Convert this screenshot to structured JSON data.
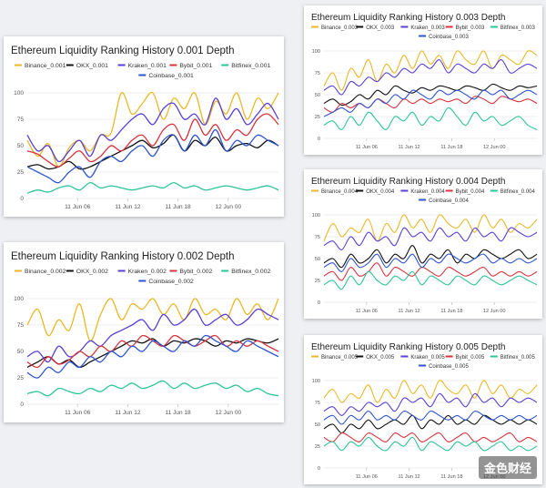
{
  "colors": {
    "Binance": "#e9b92a",
    "OKX": "#111111",
    "Kraken": "#5b3fd6",
    "Bybit": "#d8343c",
    "Bitfinex": "#2ec49a",
    "Coinbase": "#2f55d1"
  },
  "watermark": "金色财经",
  "chart_data": [
    {
      "type": "line",
      "title": "Ethereum Liquidity Ranking History 0.001 Depth",
      "ylim": [
        0,
        100
      ],
      "yticks": [
        0,
        25,
        50,
        75,
        100
      ],
      "xticks": [
        "11 Jun 06",
        "11 Jun 12",
        "11 Jun 18",
        "12 Jun 00"
      ],
      "legend_position": "top",
      "grid": true,
      "series": [
        {
          "name": "Binance_0.001",
          "values": [
            55,
            40,
            52,
            30,
            48,
            55,
            45,
            60,
            62,
            100,
            80,
            90,
            100,
            75,
            95,
            85,
            100,
            70,
            92,
            80,
            100,
            75,
            95,
            85,
            100
          ]
        },
        {
          "name": "OKX_0.001",
          "values": [
            30,
            32,
            28,
            30,
            35,
            28,
            30,
            35,
            40,
            45,
            50,
            55,
            48,
            52,
            60,
            45,
            55,
            50,
            58,
            45,
            50,
            52,
            48,
            55,
            50
          ]
        },
        {
          "name": "Kraken_0.001",
          "values": [
            60,
            45,
            50,
            35,
            45,
            55,
            40,
            60,
            55,
            65,
            75,
            80,
            70,
            85,
            90,
            75,
            80,
            70,
            95,
            75,
            85,
            70,
            80,
            90,
            75
          ]
        },
        {
          "name": "Bybit_0.001",
          "values": [
            45,
            42,
            35,
            30,
            38,
            45,
            35,
            40,
            50,
            45,
            55,
            60,
            50,
            65,
            70,
            55,
            75,
            60,
            70,
            55,
            65,
            60,
            75,
            80,
            70
          ]
        },
        {
          "name": "Bitfinex_0.001",
          "values": [
            5,
            8,
            6,
            10,
            12,
            8,
            15,
            10,
            12,
            10,
            8,
            10,
            12,
            10,
            15,
            10,
            12,
            8,
            10,
            12,
            10,
            8,
            10,
            12,
            8
          ]
        },
        {
          "name": "Coinbase_0.001",
          "values": [
            30,
            25,
            20,
            15,
            25,
            30,
            20,
            35,
            40,
            35,
            45,
            50,
            40,
            55,
            60,
            45,
            60,
            50,
            65,
            45,
            55,
            50,
            60,
            55,
            50
          ]
        }
      ]
    },
    {
      "type": "line",
      "title": "Ethereum Liquidity Ranking History 0.002 Depth",
      "ylim": [
        0,
        100
      ],
      "yticks": [
        0,
        25,
        50,
        75,
        100
      ],
      "xticks": [
        "11 Jun 06",
        "11 Jun 12",
        "11 Jun 18",
        "12 Jun 00"
      ],
      "legend_position": "top",
      "grid": true,
      "series": [
        {
          "name": "Binance_0.002",
          "values": [
            75,
            90,
            65,
            80,
            70,
            95,
            60,
            85,
            100,
            80,
            95,
            90,
            100,
            85,
            95,
            80,
            100,
            85,
            90,
            80,
            100,
            85,
            95,
            80,
            100
          ]
        },
        {
          "name": "OKX_0.002",
          "values": [
            35,
            40,
            45,
            38,
            42,
            35,
            40,
            45,
            50,
            55,
            60,
            58,
            62,
            55,
            60,
            58,
            62,
            60,
            55,
            60,
            58,
            62,
            60,
            58,
            62
          ]
        },
        {
          "name": "Kraken_0.002",
          "values": [
            45,
            50,
            40,
            55,
            45,
            50,
            60,
            55,
            65,
            70,
            75,
            80,
            70,
            85,
            75,
            80,
            90,
            75,
            80,
            85,
            75,
            80,
            90,
            85,
            80
          ]
        },
        {
          "name": "Bybit_0.002",
          "values": [
            40,
            35,
            45,
            38,
            42,
            50,
            45,
            55,
            50,
            60,
            55,
            65,
            60,
            55,
            65,
            60,
            55,
            60,
            65,
            55,
            60,
            55,
            60,
            55,
            50
          ]
        },
        {
          "name": "Bitfinex_0.002",
          "values": [
            10,
            12,
            8,
            15,
            12,
            10,
            15,
            12,
            18,
            15,
            20,
            15,
            18,
            22,
            15,
            20,
            15,
            18,
            20,
            15,
            18,
            12,
            15,
            10,
            8
          ]
        },
        {
          "name": "Coinbase_0.002",
          "values": [
            30,
            25,
            35,
            30,
            40,
            35,
            45,
            40,
            50,
            45,
            55,
            50,
            60,
            55,
            50,
            60,
            55,
            65,
            60,
            55,
            50,
            60,
            55,
            50,
            45
          ]
        }
      ]
    },
    {
      "type": "line",
      "title": "Ethereum Liquidity Ranking History 0.003 Depth",
      "ylim": [
        0,
        100
      ],
      "yticks": [
        0,
        25,
        50,
        75,
        100
      ],
      "xticks": [
        "11 Jun 06",
        "11 Jun 12",
        "11 Jun 18",
        "12 Jun 00"
      ],
      "legend_position": "top",
      "grid": true,
      "series": [
        {
          "name": "Binance_0.003",
          "values": [
            60,
            75,
            55,
            80,
            70,
            90,
            65,
            85,
            75,
            95,
            80,
            100,
            85,
            95,
            80,
            100,
            90,
            85,
            100,
            80,
            95,
            90,
            85,
            100,
            95
          ]
        },
        {
          "name": "OKX_0.003",
          "values": [
            40,
            45,
            38,
            42,
            50,
            45,
            55,
            50,
            60,
            55,
            52,
            58,
            55,
            60,
            58,
            55,
            60,
            58,
            55,
            62,
            58,
            55,
            60,
            58,
            60
          ]
        },
        {
          "name": "Kraken_0.003",
          "values": [
            55,
            60,
            50,
            65,
            60,
            70,
            65,
            75,
            70,
            80,
            75,
            85,
            80,
            90,
            75,
            85,
            80,
            75,
            85,
            80,
            90,
            75,
            80,
            85,
            80
          ]
        },
        {
          "name": "Bybit_0.003",
          "values": [
            35,
            30,
            40,
            35,
            40,
            35,
            45,
            40,
            35,
            45,
            40,
            45,
            40,
            45,
            42,
            45,
            40,
            48,
            45,
            40,
            48,
            45,
            42,
            45,
            40
          ]
        },
        {
          "name": "Bitfinex_0.003",
          "values": [
            15,
            20,
            10,
            25,
            15,
            30,
            20,
            10,
            25,
            20,
            30,
            15,
            25,
            20,
            35,
            25,
            15,
            30,
            20,
            25,
            15,
            20,
            25,
            15,
            10
          ]
        },
        {
          "name": "Coinbase_0.003",
          "values": [
            25,
            30,
            35,
            30,
            40,
            35,
            45,
            40,
            50,
            45,
            55,
            50,
            45,
            55,
            50,
            55,
            50,
            45,
            55,
            50,
            55,
            45,
            50,
            55,
            50
          ]
        }
      ]
    },
    {
      "type": "line",
      "title": "Ethereum Liquidity Ranking History 0.004 Depth",
      "ylim": [
        0,
        100
      ],
      "yticks": [
        0,
        25,
        50,
        75,
        100
      ],
      "xticks": [
        "11 Jun 06",
        "11 Jun 12",
        "11 Jun 18",
        "12 Jun 00"
      ],
      "legend_position": "top",
      "grid": true,
      "series": [
        {
          "name": "Binance_0.004",
          "values": [
            70,
            90,
            75,
            85,
            80,
            95,
            70,
            90,
            80,
            100,
            85,
            95,
            80,
            100,
            90,
            85,
            95,
            80,
            100,
            85,
            95,
            80,
            90,
            85,
            95
          ]
        },
        {
          "name": "OKX_0.004",
          "values": [
            45,
            50,
            40,
            55,
            45,
            50,
            60,
            45,
            55,
            50,
            65,
            45,
            55,
            50,
            60,
            45,
            55,
            50,
            60,
            55,
            50,
            55,
            60,
            50,
            55
          ]
        },
        {
          "name": "Kraken_0.004",
          "values": [
            65,
            70,
            60,
            75,
            65,
            80,
            70,
            75,
            65,
            85,
            75,
            80,
            70,
            85,
            75,
            80,
            70,
            85,
            75,
            80,
            70,
            85,
            80,
            75,
            80
          ]
        },
        {
          "name": "Bybit_0.004",
          "values": [
            30,
            35,
            25,
            40,
            30,
            35,
            45,
            30,
            40,
            35,
            30,
            40,
            35,
            30,
            40,
            35,
            30,
            35,
            40,
            30,
            35,
            30,
            35,
            30,
            35
          ]
        },
        {
          "name": "Bitfinex_0.004",
          "values": [
            20,
            25,
            15,
            30,
            20,
            35,
            25,
            20,
            30,
            25,
            35,
            20,
            30,
            25,
            20,
            30,
            25,
            20,
            30,
            25,
            20,
            25,
            30,
            25,
            20
          ]
        },
        {
          "name": "Coinbase_0.004",
          "values": [
            40,
            45,
            35,
            50,
            40,
            45,
            55,
            40,
            50,
            45,
            55,
            40,
            50,
            45,
            55,
            50,
            45,
            50,
            55,
            45,
            50,
            45,
            50,
            45,
            50
          ]
        }
      ]
    },
    {
      "type": "line",
      "title": "Ethereum Liquidity Ranking History 0.005 Depth",
      "ylim": [
        0,
        100
      ],
      "yticks": [
        0,
        25,
        50,
        75,
        100
      ],
      "xticks": [
        "11 Jun 06",
        "11 Jun 12",
        "11 Jun 18",
        "12 Jun 00"
      ],
      "legend_position": "top",
      "grid": true,
      "series": [
        {
          "name": "Binance_0.005",
          "values": [
            80,
            90,
            75,
            85,
            80,
            95,
            75,
            90,
            80,
            100,
            85,
            95,
            80,
            100,
            90,
            85,
            95,
            80,
            100,
            85,
            95,
            80,
            90,
            85,
            95
          ]
        },
        {
          "name": "OKX_0.005",
          "values": [
            45,
            50,
            40,
            50,
            45,
            55,
            45,
            50,
            55,
            50,
            60,
            45,
            55,
            50,
            60,
            50,
            55,
            50,
            60,
            55,
            50,
            55,
            50,
            55,
            50
          ]
        },
        {
          "name": "Kraken_0.005",
          "values": [
            65,
            70,
            60,
            70,
            65,
            75,
            70,
            75,
            65,
            80,
            75,
            80,
            70,
            85,
            75,
            80,
            70,
            85,
            75,
            80,
            70,
            80,
            75,
            80,
            75
          ]
        },
        {
          "name": "Bybit_0.005",
          "values": [
            35,
            30,
            40,
            35,
            30,
            40,
            35,
            30,
            40,
            35,
            40,
            30,
            35,
            40,
            30,
            35,
            40,
            30,
            35,
            30,
            35,
            40,
            30,
            35,
            30
          ]
        },
        {
          "name": "Bitfinex_0.005",
          "values": [
            25,
            30,
            20,
            30,
            25,
            35,
            25,
            20,
            30,
            25,
            35,
            20,
            30,
            25,
            20,
            30,
            25,
            30,
            20,
            25,
            30,
            20,
            25,
            20,
            25
          ]
        },
        {
          "name": "Coinbase_0.005",
          "values": [
            55,
            60,
            50,
            60,
            55,
            65,
            55,
            60,
            55,
            65,
            60,
            55,
            65,
            60,
            55,
            60,
            55,
            65,
            60,
            55,
            60,
            55,
            60,
            55,
            60
          ]
        }
      ]
    }
  ]
}
